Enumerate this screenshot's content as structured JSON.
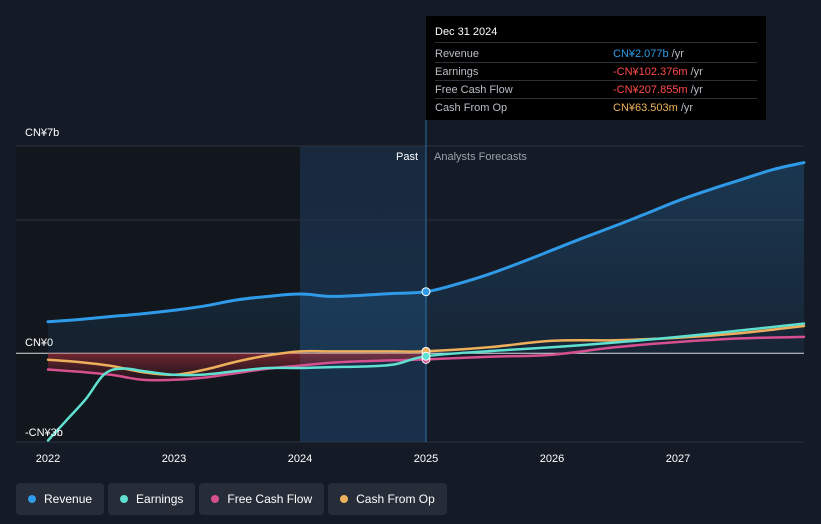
{
  "tooltip": {
    "date": "Dec 31 2024",
    "rows": [
      {
        "label": "Revenue",
        "value": "CN¥2.077b",
        "unit": "/yr",
        "color": "#2f9be8"
      },
      {
        "label": "Earnings",
        "value": "-CN¥102.376m",
        "unit": "/yr",
        "color": "#ff4b4b"
      },
      {
        "label": "Free Cash Flow",
        "value": "-CN¥207.855m",
        "unit": "/yr",
        "color": "#ff4b4b"
      },
      {
        "label": "Cash From Op",
        "value": "CN¥63.503m",
        "unit": "/yr",
        "color": "#f0b35c"
      }
    ]
  },
  "regions": {
    "past": "Past",
    "forecast": "Analysts Forecasts"
  },
  "legend": [
    {
      "label": "Revenue",
      "color": "#2f9be8"
    },
    {
      "label": "Earnings",
      "color": "#5fe0d0"
    },
    {
      "label": "Free Cash Flow",
      "color": "#d6508f"
    },
    {
      "label": "Cash From Op",
      "color": "#eeaf5c"
    }
  ],
  "chart_data": {
    "type": "line",
    "title": "",
    "y_label_top": "CN¥7b",
    "y_label_zero": "CN¥0",
    "y_label_bottom": "-CN¥3b",
    "ylim": [
      -3,
      7
    ],
    "xlim": [
      2022.0,
      2028.0
    ],
    "x_ticks": [
      2022,
      2023,
      2024,
      2025,
      2026,
      2027
    ],
    "x_tick_labels": [
      "2022",
      "2023",
      "2024",
      "2025",
      "2026",
      "2027"
    ],
    "past_start": 2024.0,
    "forecast_start": 2025.0,
    "series": [
      {
        "name": "Revenue",
        "color": "#2f9be8",
        "x": [
          2022.0,
          2022.25,
          2022.5,
          2022.75,
          2023.0,
          2023.25,
          2023.5,
          2023.75,
          2024.0,
          2024.25,
          2024.5,
          2024.75,
          2025.0,
          2025.25,
          2025.5,
          2025.75,
          2026.0,
          2026.25,
          2026.5,
          2026.75,
          2027.0,
          2027.25,
          2027.5,
          2027.75,
          2028.0
        ],
        "values": [
          1.06,
          1.14,
          1.24,
          1.33,
          1.45,
          1.6,
          1.8,
          1.92,
          2.0,
          1.92,
          1.96,
          2.02,
          2.077,
          2.34,
          2.67,
          3.06,
          3.48,
          3.9,
          4.3,
          4.72,
          5.15,
          5.52,
          5.86,
          6.2,
          6.44
        ]
      },
      {
        "name": "Earnings",
        "color": "#5fe0d0",
        "x": [
          2022.0,
          2022.15,
          2022.3,
          2022.45,
          2022.6,
          2022.75,
          2023.0,
          2023.25,
          2023.5,
          2023.75,
          2024.0,
          2024.25,
          2024.5,
          2024.75,
          2025.0,
          2025.5,
          2026.0,
          2026.5,
          2027.0,
          2027.5,
          2028.0
        ],
        "values": [
          -2.95,
          -2.25,
          -1.55,
          -0.7,
          -0.52,
          -0.6,
          -0.73,
          -0.72,
          -0.6,
          -0.5,
          -0.5,
          -0.47,
          -0.45,
          -0.38,
          -0.102,
          0.07,
          0.2,
          0.36,
          0.55,
          0.77,
          1.0
        ]
      },
      {
        "name": "Free Cash Flow",
        "color": "#d6508f",
        "x": [
          2022.0,
          2022.25,
          2022.5,
          2022.75,
          2023.0,
          2023.25,
          2023.5,
          2023.75,
          2024.0,
          2024.25,
          2024.5,
          2024.75,
          2025.0,
          2025.5,
          2026.0,
          2026.5,
          2027.0,
          2027.5,
          2028.0
        ],
        "values": [
          -0.55,
          -0.63,
          -0.73,
          -0.9,
          -0.9,
          -0.82,
          -0.67,
          -0.52,
          -0.42,
          -0.32,
          -0.27,
          -0.24,
          -0.208,
          -0.12,
          -0.05,
          0.2,
          0.38,
          0.5,
          0.55
        ]
      },
      {
        "name": "Cash From Op",
        "color": "#eeaf5c",
        "x": [
          2022.0,
          2022.25,
          2022.5,
          2022.75,
          2023.0,
          2023.25,
          2023.5,
          2023.75,
          2024.0,
          2024.25,
          2024.5,
          2024.75,
          2025.0,
          2025.5,
          2026.0,
          2026.5,
          2027.0,
          2027.5,
          2028.0
        ],
        "values": [
          -0.22,
          -0.3,
          -0.43,
          -0.64,
          -0.73,
          -0.55,
          -0.28,
          -0.07,
          0.06,
          0.06,
          0.06,
          0.06,
          0.063,
          0.2,
          0.42,
          0.44,
          0.52,
          0.68,
          0.92
        ]
      }
    ]
  }
}
